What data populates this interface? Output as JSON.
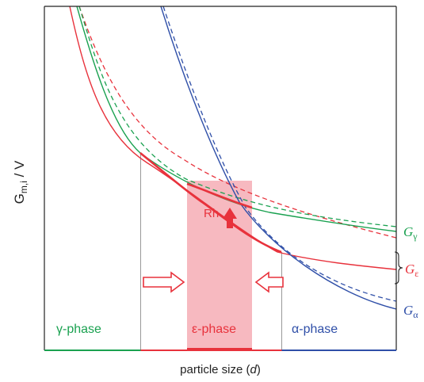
{
  "axes": {
    "ylabel_main": "G",
    "ylabel_sub": "m,i",
    "ylabel_tail": " / V",
    "xlabel_main": "particle size (",
    "xlabel_var": "d",
    "xlabel_close": ")"
  },
  "phases": {
    "gamma": "γ-phase",
    "epsilon": "ε-phase",
    "alpha": "α-phase"
  },
  "curve_labels": {
    "gamma_G": "G",
    "gamma_sub": "γ",
    "epsilon_G": "G",
    "epsilon_sub": "ε",
    "alpha_G": "G",
    "alpha_sub": "α"
  },
  "annotation": {
    "rh": "Rh"
  },
  "colors": {
    "gamma": "#1aa150",
    "epsilon": "#e8323c",
    "alpha": "#2f4fa8",
    "band": "#f7b9c0",
    "divider": "#999999",
    "axis": "#222222"
  }
}
